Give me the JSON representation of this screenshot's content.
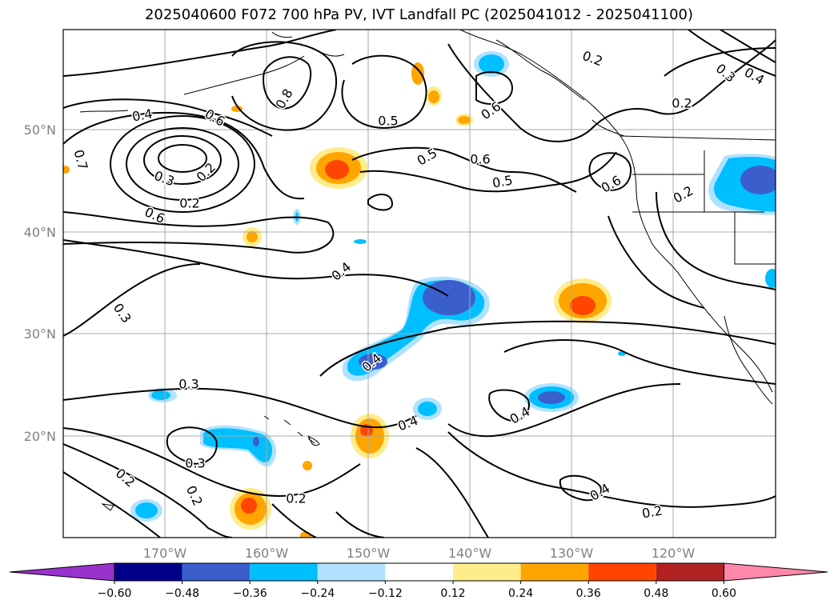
{
  "title": "2025040600 F072 700 hPa PV, IVT Landfall PC (2025041012 - 2025041100)",
  "lon_ticks": [
    "170°W",
    "160°W",
    "150°W",
    "140°W",
    "130°W",
    "120°W"
  ],
  "lat_ticks": [
    "50°N",
    "40°N",
    "30°N",
    "20°N"
  ],
  "colorbar": {
    "ticks": [
      "−0.60",
      "−0.48",
      "−0.36",
      "−0.24",
      "−0.12",
      "0.12",
      "0.24",
      "0.36",
      "0.48",
      "0.60"
    ],
    "colors": [
      "#9932cc",
      "#00008b",
      "#3a5fcd",
      "#00bfff",
      "#b0e2ff",
      "#ffffff",
      "#ffec8b",
      "#ffa500",
      "#ff4500",
      "#b22222",
      "#ff88aa"
    ]
  },
  "contour_labels": [
    "0.4",
    "0.6",
    "0.8",
    "0.7",
    "0.3",
    "0.2",
    "0.6",
    "0.5",
    "0.6",
    "0.6",
    "0.2",
    "0.3",
    "0.2",
    "0.5",
    "0.4",
    "0.6",
    "0.5",
    "0.2",
    "0.4",
    "0.3",
    "0.4",
    "0.2",
    "0.4",
    "0.3",
    "0.3",
    "0.2",
    "0.2",
    "0.2",
    "0.4",
    "0.4",
    "0.2"
  ]
}
